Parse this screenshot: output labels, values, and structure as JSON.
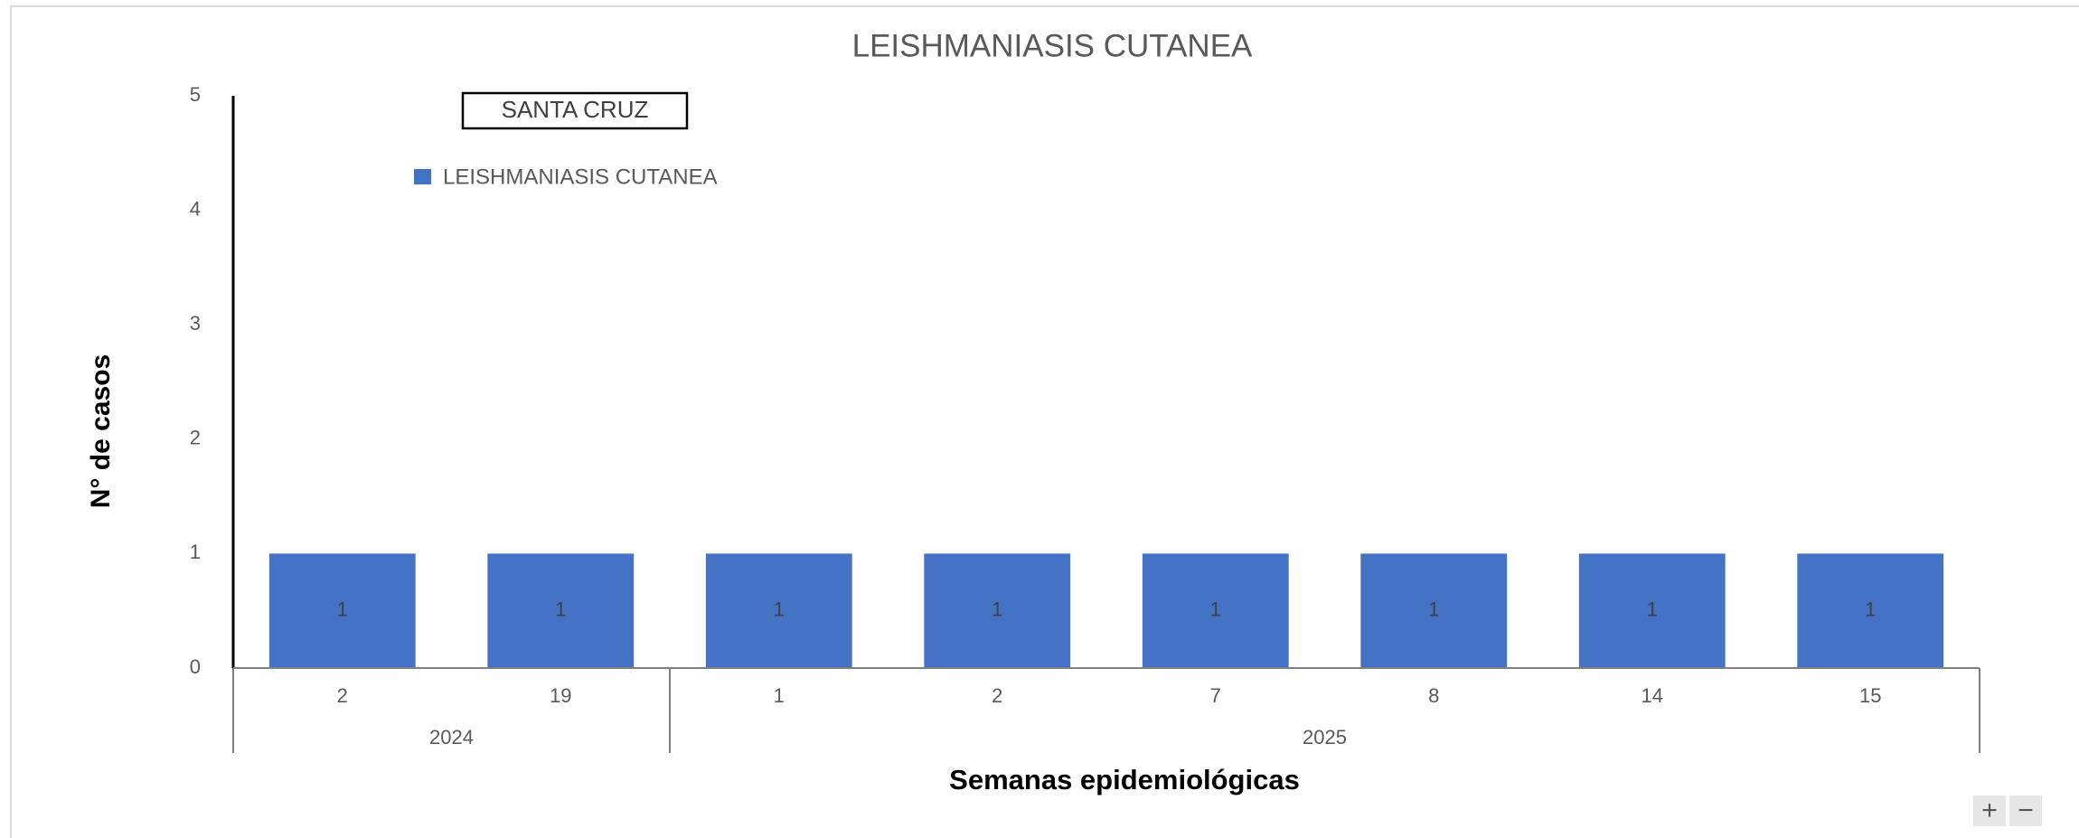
{
  "chart_data": {
    "type": "bar",
    "title": "LEISHMANIASIS CUTANEA",
    "annotation": "SANTA CRUZ",
    "x_label": "Semanas epidemiológicas",
    "y_label": "N° de casos",
    "category_groups": [
      {
        "name": "2024",
        "categories": [
          "2",
          "19"
        ]
      },
      {
        "name": "2025",
        "categories": [
          "1",
          "2",
          "7",
          "8",
          "14",
          "15"
        ]
      }
    ],
    "series": [
      {
        "name": "LEISHMANIASIS CUTANEA",
        "color": "#4472c4",
        "values": [
          1,
          1,
          1,
          1,
          1,
          1,
          1,
          1
        ]
      }
    ],
    "ylim": [
      0,
      5
    ],
    "yticks": [
      0,
      1,
      2,
      3,
      4,
      5
    ],
    "grid": false,
    "legend": "top-left"
  },
  "controls": {
    "zoom_in": "+",
    "zoom_out": "−"
  }
}
